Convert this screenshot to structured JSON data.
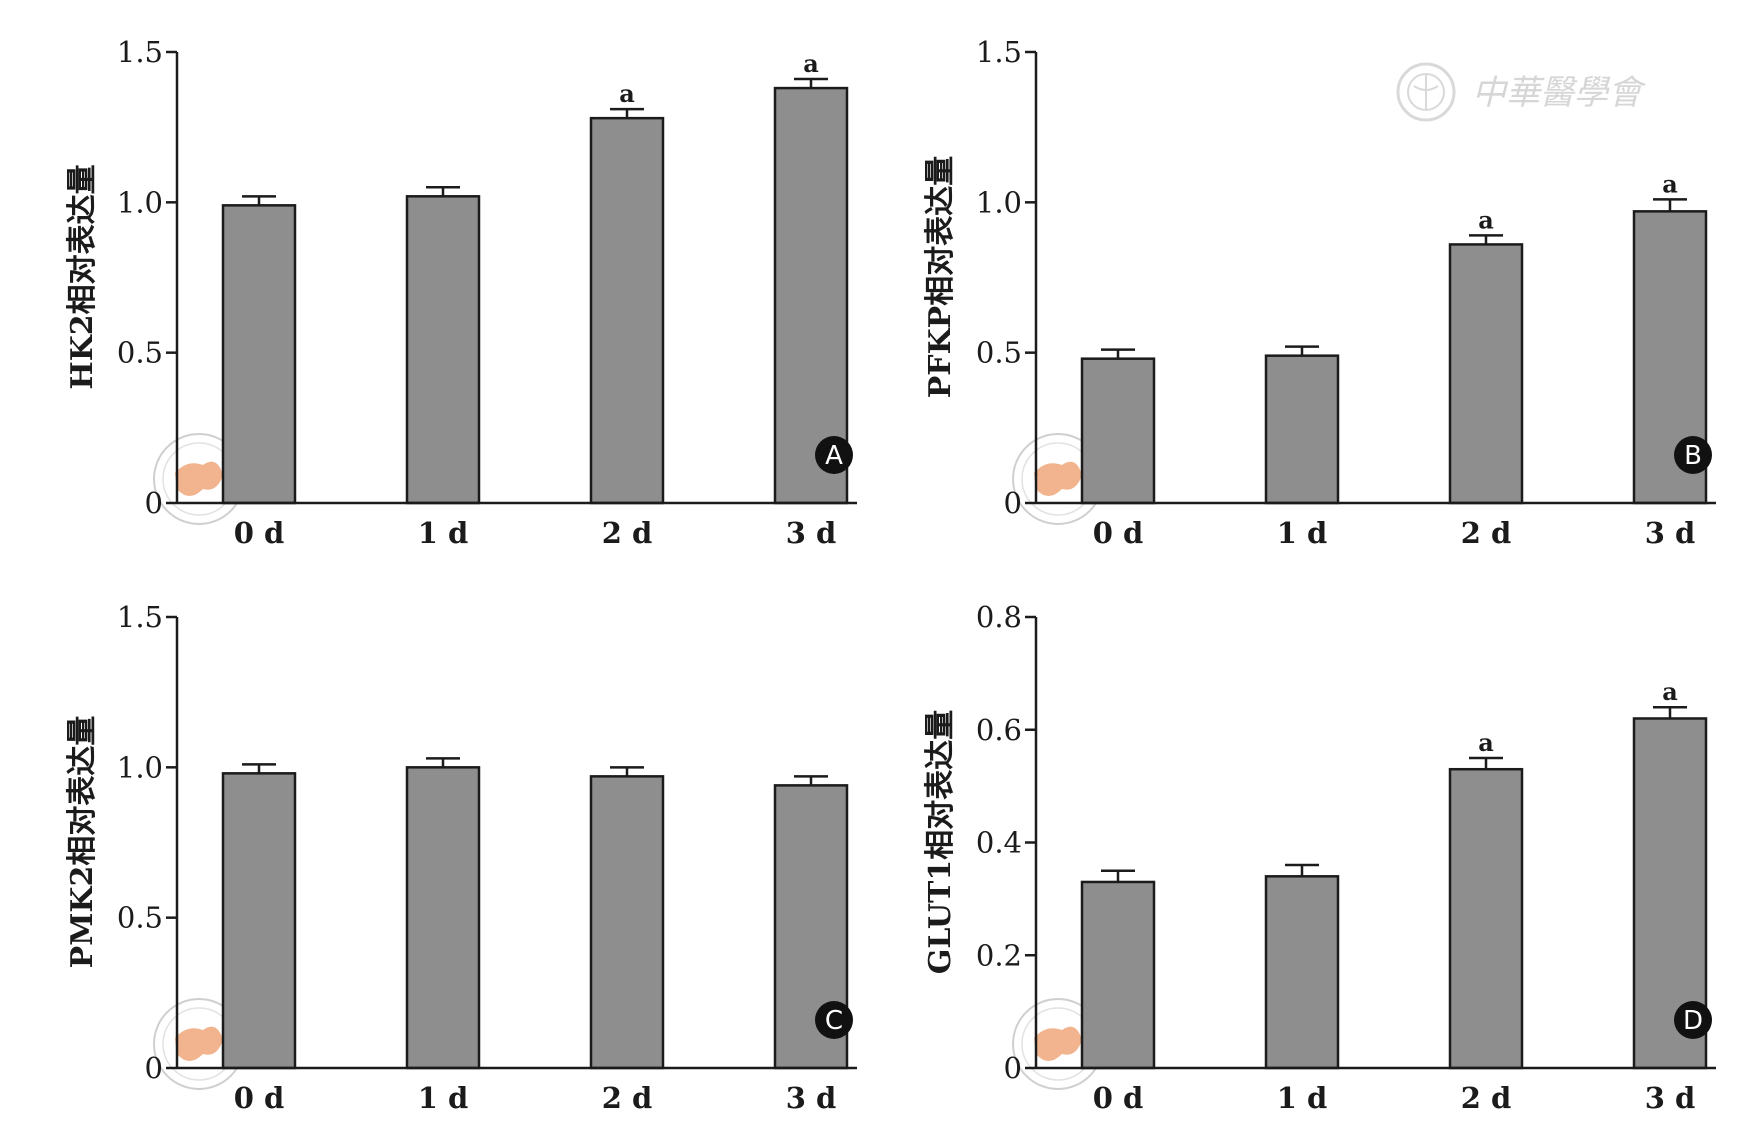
{
  "watermark": {
    "text": "中華醫學會"
  },
  "colors": {
    "bar_fill": "#8e8e8e",
    "bar_stroke": "#1b1b1b",
    "axis": "#1b1b1b",
    "badge": "#111111",
    "seal_fill": "#f2b48e",
    "seal_ring": "#cfcfcf"
  },
  "chart_data": [
    {
      "type": "bar",
      "panel_label": "A",
      "ylabel": "HK2相对表达量",
      "xlabel": "",
      "categories": [
        "0 d",
        "1 d",
        "2 d",
        "3 d"
      ],
      "values": [
        0.99,
        1.02,
        1.28,
        1.38
      ],
      "errors": [
        0.03,
        0.03,
        0.03,
        0.03
      ],
      "annotations": [
        "",
        "",
        "a",
        "a"
      ],
      "ylim": [
        0,
        1.5
      ],
      "yticks": [
        0,
        0.5,
        1.0,
        1.5
      ],
      "ytick_labels": [
        "0",
        "0.5",
        "1.0",
        "1.5"
      ],
      "grid": false,
      "legend": "none"
    },
    {
      "type": "bar",
      "panel_label": "B",
      "ylabel": "PFKP相对表达量",
      "xlabel": "",
      "categories": [
        "0 d",
        "1 d",
        "2 d",
        "3 d"
      ],
      "values": [
        0.48,
        0.49,
        0.86,
        0.97
      ],
      "errors": [
        0.03,
        0.03,
        0.03,
        0.04
      ],
      "annotations": [
        "",
        "",
        "a",
        "a"
      ],
      "ylim": [
        0,
        1.5
      ],
      "yticks": [
        0,
        0.5,
        1.0,
        1.5
      ],
      "ytick_labels": [
        "0",
        "0.5",
        "1.0",
        "1.5"
      ],
      "grid": false,
      "legend": "none"
    },
    {
      "type": "bar",
      "panel_label": "C",
      "ylabel": "PMK2相对表达量",
      "xlabel": "",
      "categories": [
        "0 d",
        "1 d",
        "2 d",
        "3 d"
      ],
      "values": [
        0.98,
        1.0,
        0.97,
        0.94
      ],
      "errors": [
        0.03,
        0.03,
        0.03,
        0.03
      ],
      "annotations": [
        "",
        "",
        "",
        ""
      ],
      "ylim": [
        0,
        1.5
      ],
      "yticks": [
        0,
        0.5,
        1.0,
        1.5
      ],
      "ytick_labels": [
        "0",
        "0.5",
        "1.0",
        "1.5"
      ],
      "grid": false,
      "legend": "none"
    },
    {
      "type": "bar",
      "panel_label": "D",
      "ylabel": "GLUT1相对表达量",
      "xlabel": "",
      "categories": [
        "0 d",
        "1 d",
        "2 d",
        "3 d"
      ],
      "values": [
        0.33,
        0.34,
        0.53,
        0.62
      ],
      "errors": [
        0.02,
        0.02,
        0.02,
        0.02
      ],
      "annotations": [
        "",
        "",
        "a",
        "a"
      ],
      "ylim": [
        0,
        0.8
      ],
      "yticks": [
        0,
        0.2,
        0.4,
        0.6,
        0.8
      ],
      "ytick_labels": [
        "0",
        "0.2",
        "0.4",
        "0.6",
        "0.8"
      ],
      "grid": false,
      "legend": "none"
    }
  ]
}
